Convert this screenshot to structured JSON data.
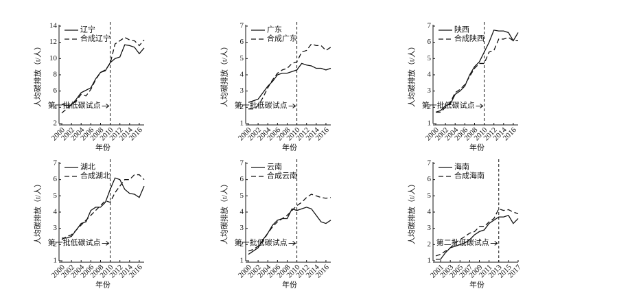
{
  "chart_data": [
    {
      "type": "line",
      "xlabel": "年份",
      "ylabel": "人均碳排放（t/人）",
      "x": [
        2000,
        2001,
        2002,
        2003,
        2004,
        2005,
        2006,
        2007,
        2008,
        2009,
        2010,
        2011,
        2012,
        2013,
        2014,
        2015,
        2016,
        2017
      ],
      "series": [
        {
          "name": "辽宁",
          "color": "#111",
          "dash": "solid",
          "values": [
            4.4,
            4.2,
            4.3,
            5.0,
            5.8,
            6.1,
            6.4,
            7.5,
            8.3,
            8.5,
            9.5,
            10.0,
            10.2,
            11.7,
            11.6,
            11.4,
            10.6,
            11.3
          ]
        },
        {
          "name": "合成辽宁",
          "color": "#111",
          "dash": "dashed",
          "values": [
            3.3,
            3.8,
            4.3,
            4.8,
            5.6,
            5.4,
            6.2,
            7.4,
            8.3,
            8.6,
            9.4,
            11.8,
            12.2,
            12.6,
            12.3,
            12.2,
            11.6,
            12.3
          ]
        }
      ],
      "xlim": [
        2000,
        2017
      ],
      "xticks": [
        2000,
        2002,
        2004,
        2006,
        2008,
        2010,
        2012,
        2014,
        2016
      ],
      "ylim": [
        2,
        14
      ],
      "yticks": [
        2,
        4,
        6,
        8,
        10,
        12,
        14
      ],
      "event_x": 2010,
      "annotation": "第一批低碳试点"
    },
    {
      "type": "line",
      "xlabel": "年份",
      "ylabel": "人均碳排放（t/人）",
      "x": [
        2000,
        2001,
        2002,
        2003,
        2004,
        2005,
        2006,
        2007,
        2008,
        2009,
        2010,
        2011,
        2012,
        2013,
        2014,
        2015,
        2016,
        2017
      ],
      "series": [
        {
          "name": "广东",
          "color": "#111",
          "dash": "solid",
          "values": [
            2.3,
            2.4,
            2.5,
            2.9,
            3.3,
            3.6,
            4.0,
            4.1,
            4.1,
            4.2,
            4.3,
            4.7,
            4.6,
            4.55,
            4.4,
            4.4,
            4.3,
            4.4
          ]
        },
        {
          "name": "合成广东",
          "color": "#111",
          "dash": "dashed",
          "values": [
            1.9,
            1.9,
            2.1,
            2.6,
            3.2,
            3.7,
            4.1,
            4.3,
            4.4,
            4.7,
            4.8,
            5.4,
            5.5,
            5.9,
            5.8,
            5.8,
            5.5,
            5.7
          ]
        }
      ],
      "xlim": [
        2000,
        2017
      ],
      "xticks": [
        2000,
        2002,
        2004,
        2006,
        2008,
        2010,
        2012,
        2014,
        2016
      ],
      "ylim": [
        1,
        7
      ],
      "yticks": [
        1,
        2,
        3,
        4,
        5,
        6,
        7
      ],
      "event_x": 2010,
      "annotation": "第一批低碳试点"
    },
    {
      "type": "line",
      "xlabel": "年份",
      "ylabel": "人均碳排放（t/人）",
      "x": [
        2000,
        2001,
        2002,
        2003,
        2004,
        2005,
        2006,
        2007,
        2008,
        2009,
        2010,
        2011,
        2012,
        2013,
        2014,
        2015,
        2016,
        2017
      ],
      "series": [
        {
          "name": "陕西",
          "color": "#111",
          "dash": "solid",
          "values": [
            1.7,
            1.8,
            2.1,
            2.2,
            2.8,
            3.0,
            3.3,
            4.0,
            4.5,
            4.8,
            5.4,
            6.0,
            6.75,
            6.7,
            6.7,
            6.6,
            6.1,
            6.6
          ]
        },
        {
          "name": "合成陕西",
          "color": "#111",
          "dash": "dashed",
          "values": [
            1.7,
            1.7,
            2.0,
            2.3,
            2.9,
            3.1,
            3.4,
            3.9,
            4.4,
            4.7,
            4.7,
            5.4,
            5.5,
            6.2,
            6.2,
            6.3,
            6.1,
            6.1
          ]
        }
      ],
      "xlim": [
        2000,
        2017
      ],
      "xticks": [
        2000,
        2002,
        2004,
        2006,
        2008,
        2010,
        2012,
        2014,
        2016
      ],
      "ylim": [
        1,
        7
      ],
      "yticks": [
        1,
        2,
        3,
        4,
        5,
        6,
        7
      ],
      "event_x": 2010,
      "annotation": "第一批低碳试点"
    },
    {
      "type": "line",
      "xlabel": "年份",
      "ylabel": "人均碳排放（t/人）",
      "x": [
        2000,
        2001,
        2002,
        2003,
        2004,
        2005,
        2006,
        2007,
        2008,
        2009,
        2010,
        2011,
        2012,
        2013,
        2014,
        2015,
        2016,
        2017
      ],
      "series": [
        {
          "name": "湖北",
          "color": "#111",
          "dash": "solid",
          "values": [
            2.4,
            2.4,
            2.5,
            2.9,
            3.3,
            3.4,
            4.1,
            4.3,
            4.3,
            4.6,
            5.4,
            6.1,
            6.0,
            5.4,
            5.15,
            5.1,
            4.9,
            5.6
          ]
        },
        {
          "name": "合成湖北",
          "color": "#111",
          "dash": "dashed",
          "values": [
            2.3,
            2.5,
            2.6,
            2.9,
            3.2,
            3.5,
            3.8,
            4.1,
            4.4,
            4.7,
            4.6,
            5.2,
            5.6,
            6.0,
            6.0,
            6.3,
            6.3,
            6.0
          ]
        }
      ],
      "xlim": [
        2000,
        2017
      ],
      "xticks": [
        2000,
        2002,
        2004,
        2006,
        2008,
        2010,
        2012,
        2014,
        2016
      ],
      "ylim": [
        1,
        7
      ],
      "yticks": [
        1,
        2,
        3,
        4,
        5,
        6,
        7
      ],
      "event_x": 2010,
      "annotation": "第一批低碳试点"
    },
    {
      "type": "line",
      "xlabel": "年份",
      "ylabel": "人均碳排放（t/人）",
      "x": [
        2000,
        2001,
        2002,
        2003,
        2004,
        2005,
        2006,
        2007,
        2008,
        2009,
        2010,
        2011,
        2012,
        2013,
        2014,
        2015,
        2016,
        2017
      ],
      "series": [
        {
          "name": "云南",
          "color": "#111",
          "dash": "solid",
          "values": [
            1.4,
            1.6,
            1.8,
            2.3,
            2.7,
            3.2,
            3.5,
            3.6,
            3.6,
            4.2,
            4.1,
            4.2,
            4.3,
            4.2,
            3.8,
            3.4,
            3.3,
            3.5
          ]
        },
        {
          "name": "合成云南",
          "color": "#111",
          "dash": "dashed",
          "values": [
            1.6,
            1.7,
            1.9,
            2.2,
            2.7,
            3.1,
            3.4,
            3.6,
            3.8,
            4.1,
            4.4,
            4.6,
            4.9,
            5.1,
            5.0,
            4.9,
            4.85,
            4.9
          ]
        }
      ],
      "xlim": [
        2000,
        2017
      ],
      "xticks": [
        2000,
        2002,
        2004,
        2006,
        2008,
        2010,
        2012,
        2014,
        2016
      ],
      "ylim": [
        1,
        7
      ],
      "yticks": [
        1,
        2,
        3,
        4,
        5,
        6,
        7
      ],
      "event_x": 2010,
      "annotation": "第一批低碳试点"
    },
    {
      "type": "line",
      "xlabel": "年份",
      "ylabel": "人均碳排放（t/人）",
      "x": [
        2000,
        2001,
        2002,
        2003,
        2004,
        2005,
        2006,
        2007,
        2008,
        2009,
        2010,
        2011,
        2012,
        2013,
        2014,
        2015,
        2016,
        2017
      ],
      "series": [
        {
          "name": "海南",
          "color": "#111",
          "dash": "solid",
          "values": [
            1.1,
            1.1,
            1.5,
            1.8,
            1.9,
            2.0,
            2.1,
            2.3,
            2.6,
            2.8,
            2.9,
            3.3,
            3.5,
            3.7,
            3.7,
            3.8,
            3.3,
            3.6
          ]
        },
        {
          "name": "合成海南",
          "color": "#111",
          "dash": "dashed",
          "values": [
            1.3,
            1.4,
            1.6,
            1.8,
            2.1,
            2.3,
            2.5,
            2.7,
            2.8,
            3.1,
            3.1,
            3.4,
            3.6,
            4.2,
            4.1,
            4.15,
            4.0,
            3.9
          ]
        }
      ],
      "xlim": [
        2000,
        2017
      ],
      "xticks": [
        2001,
        2003,
        2005,
        2007,
        2009,
        2011,
        2013,
        2015,
        2017
      ],
      "ylim": [
        1,
        7
      ],
      "yticks": [
        1,
        2,
        3,
        4,
        5,
        6,
        7
      ],
      "event_x": 2013,
      "annotation": "第二批低碳试点"
    }
  ]
}
